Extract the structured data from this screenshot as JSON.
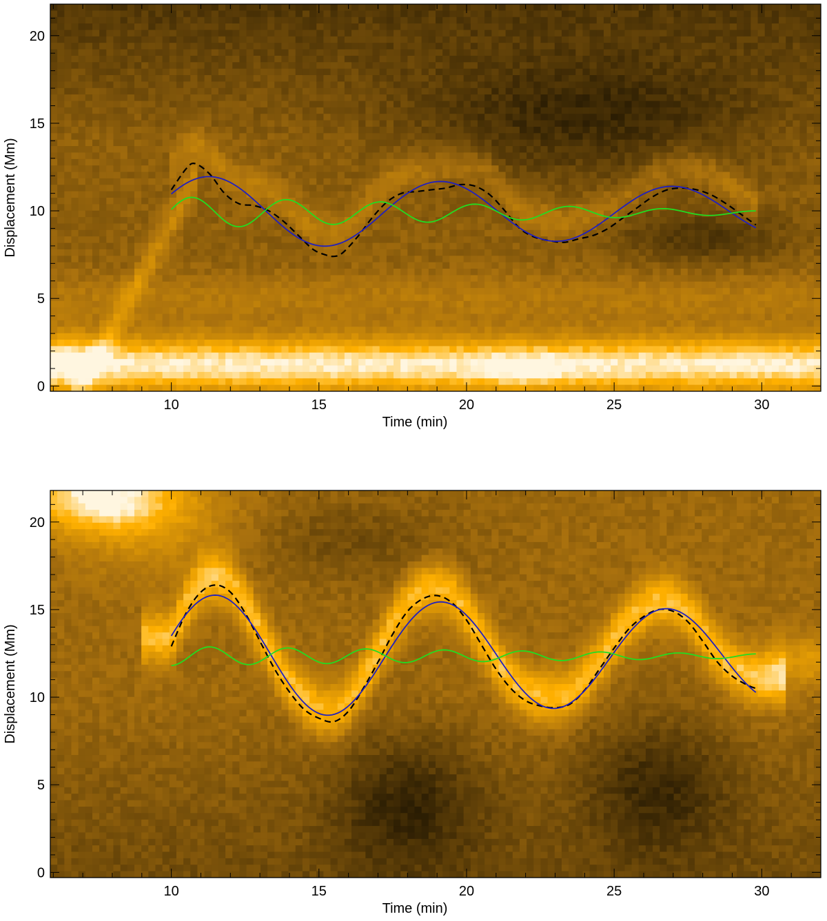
{
  "chart_data": [
    {
      "type": "line",
      "xlabel": "Time (min)",
      "ylabel": "Displacement (Mm)",
      "xlim": [
        5.9,
        32.0
      ],
      "ylim": [
        -0.3,
        21.8
      ],
      "xticks": [
        10,
        15,
        20,
        25,
        30
      ],
      "yticks": [
        0,
        5,
        10,
        15,
        20
      ],
      "background": "time-distance intensity map",
      "colors": {
        "dark": "#0a0700",
        "mid": "#a8700e",
        "bright": "#ffb000",
        "white": "#fff6e0"
      },
      "series": [
        {
          "style": "dashed",
          "color": "#000000",
          "x": [
            10.0,
            10.5,
            10.8,
            11.3,
            11.8,
            12.3,
            12.8,
            13.3,
            13.8,
            14.3,
            14.8,
            15.2,
            15.5,
            15.8,
            16.3,
            16.8,
            17.3,
            17.8,
            18.3,
            18.8,
            19.3,
            19.8,
            20.3,
            20.8,
            21.3,
            21.8,
            22.3,
            22.8,
            23.3,
            23.8,
            24.3,
            24.8,
            25.3,
            25.8,
            26.3,
            26.8,
            27.3,
            27.8,
            28.3,
            28.8,
            29.3,
            29.8
          ],
          "y": [
            11.2,
            12.4,
            12.7,
            12.1,
            11.0,
            10.4,
            10.3,
            10.0,
            9.4,
            8.6,
            7.8,
            7.5,
            7.4,
            7.6,
            8.5,
            9.6,
            10.5,
            11.0,
            11.1,
            11.2,
            11.3,
            11.5,
            11.4,
            10.9,
            10.0,
            9.0,
            8.5,
            8.3,
            8.2,
            8.4,
            8.6,
            9.0,
            9.6,
            10.2,
            10.8,
            11.2,
            11.3,
            11.2,
            10.9,
            10.4,
            9.8,
            9.2
          ]
        },
        {
          "style": "solid",
          "color": "#2020c0",
          "fit": {
            "mean": 9.9,
            "amplitude": 2.1,
            "amplitude_end": 1.4,
            "period_min": 7.85,
            "peak_time": 11.3
          },
          "x": [
            10.0,
            11.3,
            13.3,
            15.2,
            17.2,
            19.2,
            21.1,
            23.0,
            25.0,
            27.0,
            29.8
          ],
          "y": [
            11.0,
            12.0,
            10.0,
            7.9,
            9.9,
            11.6,
            9.8,
            8.3,
            9.8,
            11.3,
            9.2
          ]
        },
        {
          "style": "solid",
          "color": "#22dd22",
          "fit": {
            "mean": 9.9,
            "amplitude": 0.9,
            "amplitude_end": 0.1,
            "period_min": 3.2,
            "peak_time": 10.7
          },
          "x": [
            10.0,
            10.7,
            12.3,
            13.9,
            15.5,
            17.1,
            18.7,
            20.3,
            21.9,
            23.5,
            25.1,
            26.7,
            28.3,
            29.8
          ],
          "y": [
            10.2,
            10.7,
            9.1,
            10.5,
            9.3,
            10.3,
            9.5,
            10.2,
            9.6,
            10.0,
            9.7,
            9.9,
            9.8,
            9.9
          ]
        }
      ]
    },
    {
      "type": "line",
      "xlabel": "Time (min)",
      "ylabel": "Displacement (Mm)",
      "xlim": [
        5.9,
        32.0
      ],
      "ylim": [
        -0.3,
        21.8
      ],
      "xticks": [
        10,
        15,
        20,
        25,
        30
      ],
      "yticks": [
        0,
        5,
        10,
        15,
        20
      ],
      "background": "time-distance intensity map",
      "colors": {
        "dark": "#0a0700",
        "mid": "#a8700e",
        "bright": "#ffb000",
        "white": "#fff6e0"
      },
      "series": [
        {
          "style": "dashed",
          "color": "#000000",
          "x": [
            10.0,
            10.5,
            11.0,
            11.5,
            12.0,
            12.5,
            13.0,
            13.5,
            14.0,
            14.5,
            15.0,
            15.5,
            16.0,
            16.5,
            17.0,
            17.5,
            18.0,
            18.5,
            19.0,
            19.5,
            20.0,
            20.5,
            21.0,
            21.5,
            22.0,
            22.5,
            23.0,
            23.5,
            24.0,
            24.5,
            25.0,
            25.5,
            26.0,
            26.5,
            27.0,
            27.5,
            28.0,
            28.5,
            29.0,
            29.5,
            29.8
          ],
          "y": [
            12.9,
            14.8,
            16.0,
            16.4,
            16.0,
            14.8,
            13.2,
            11.6,
            10.3,
            9.3,
            8.8,
            8.6,
            9.2,
            10.5,
            12.0,
            13.6,
            14.9,
            15.6,
            15.8,
            15.4,
            14.4,
            13.0,
            11.6,
            10.5,
            9.8,
            9.5,
            9.4,
            9.6,
            10.4,
            11.6,
            12.8,
            13.9,
            14.6,
            15.0,
            14.9,
            14.3,
            13.2,
            12.0,
            11.2,
            10.7,
            10.5
          ]
        },
        {
          "style": "solid",
          "color": "#2020c0",
          "fit": {
            "mean": 12.3,
            "amplitude": 3.6,
            "amplitude_end": 2.6,
            "period_min": 7.65,
            "peak_time": 11.5
          },
          "x": [
            10.0,
            11.5,
            13.4,
            15.3,
            17.2,
            19.1,
            21.0,
            22.9,
            24.8,
            26.8,
            29.8
          ],
          "y": [
            13.5,
            15.9,
            12.2,
            9.0,
            12.3,
            15.5,
            12.3,
            9.5,
            12.3,
            14.9,
            10.5
          ]
        },
        {
          "style": "solid",
          "color": "#22dd22",
          "fit": {
            "mean": 12.35,
            "amplitude": 0.55,
            "amplitude_end": 0.12,
            "period_min": 2.65,
            "peak_time": 11.3
          },
          "x": [
            10.0,
            11.3,
            12.6,
            13.9,
            15.3,
            16.6,
            17.9,
            19.2,
            20.6,
            21.9,
            23.2,
            24.5,
            25.9,
            27.2,
            28.5,
            29.8
          ],
          "y": [
            11.8,
            12.9,
            11.8,
            12.8,
            11.9,
            12.7,
            12.0,
            12.6,
            12.1,
            12.6,
            12.2,
            12.5,
            12.2,
            12.45,
            12.3,
            12.4
          ]
        }
      ]
    }
  ]
}
